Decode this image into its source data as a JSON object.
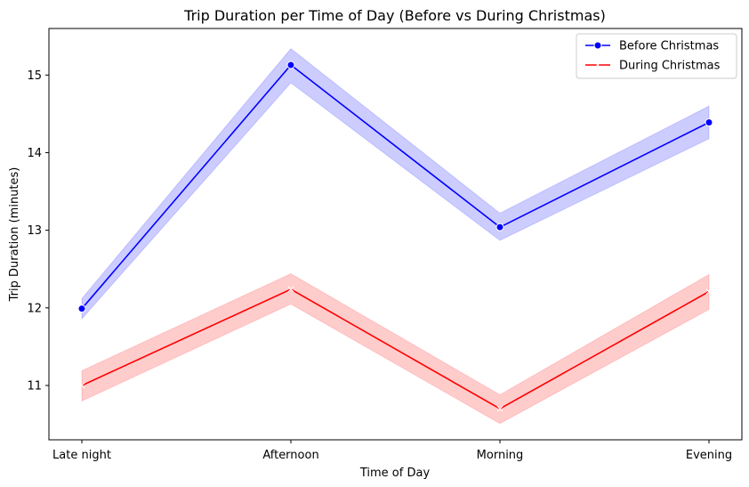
{
  "chart_data": {
    "type": "line",
    "title": "Trip Duration per Time of Day (Before vs During Christmas)",
    "xlabel": "Time of Day",
    "ylabel": "Trip Duration (minutes)",
    "categories": [
      "Late night",
      "Afternoon",
      "Morning",
      "Evening"
    ],
    "ylim": [
      10.3,
      15.6
    ],
    "yticks": [
      11,
      12,
      13,
      14,
      15
    ],
    "grid": false,
    "legend_position": "top-right",
    "series": [
      {
        "name": "Before Christmas",
        "color": "#0000ff",
        "marker": "circle",
        "values": [
          11.99,
          15.13,
          13.04,
          14.39
        ],
        "ci_lower": [
          11.86,
          14.9,
          12.87,
          14.18
        ],
        "ci_upper": [
          12.12,
          15.34,
          13.22,
          14.6
        ]
      },
      {
        "name": "During Christmas",
        "color": "#ff0000",
        "marker": "x",
        "values": [
          11.0,
          12.24,
          10.7,
          12.21
        ],
        "ci_lower": [
          10.8,
          12.05,
          10.51,
          11.98
        ],
        "ci_upper": [
          11.19,
          12.44,
          10.88,
          12.43
        ]
      }
    ]
  }
}
